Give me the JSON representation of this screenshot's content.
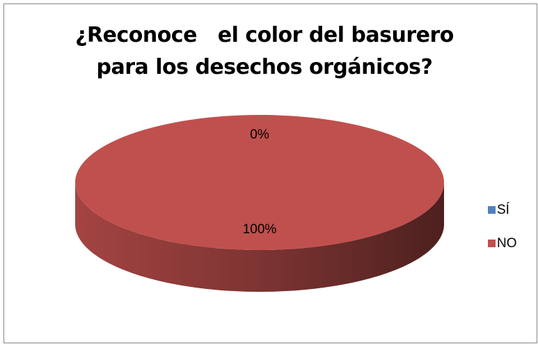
{
  "chart_data": {
    "type": "pie3d",
    "title": "¿Reconoce   el color del basurero para los desechos orgánicos?",
    "categories": [
      "SÍ",
      "NO"
    ],
    "values": [
      0,
      100
    ],
    "value_labels": [
      "0%",
      "100%"
    ],
    "colors": [
      "#4f81bd",
      "#c0504d"
    ],
    "legend": "right"
  }
}
